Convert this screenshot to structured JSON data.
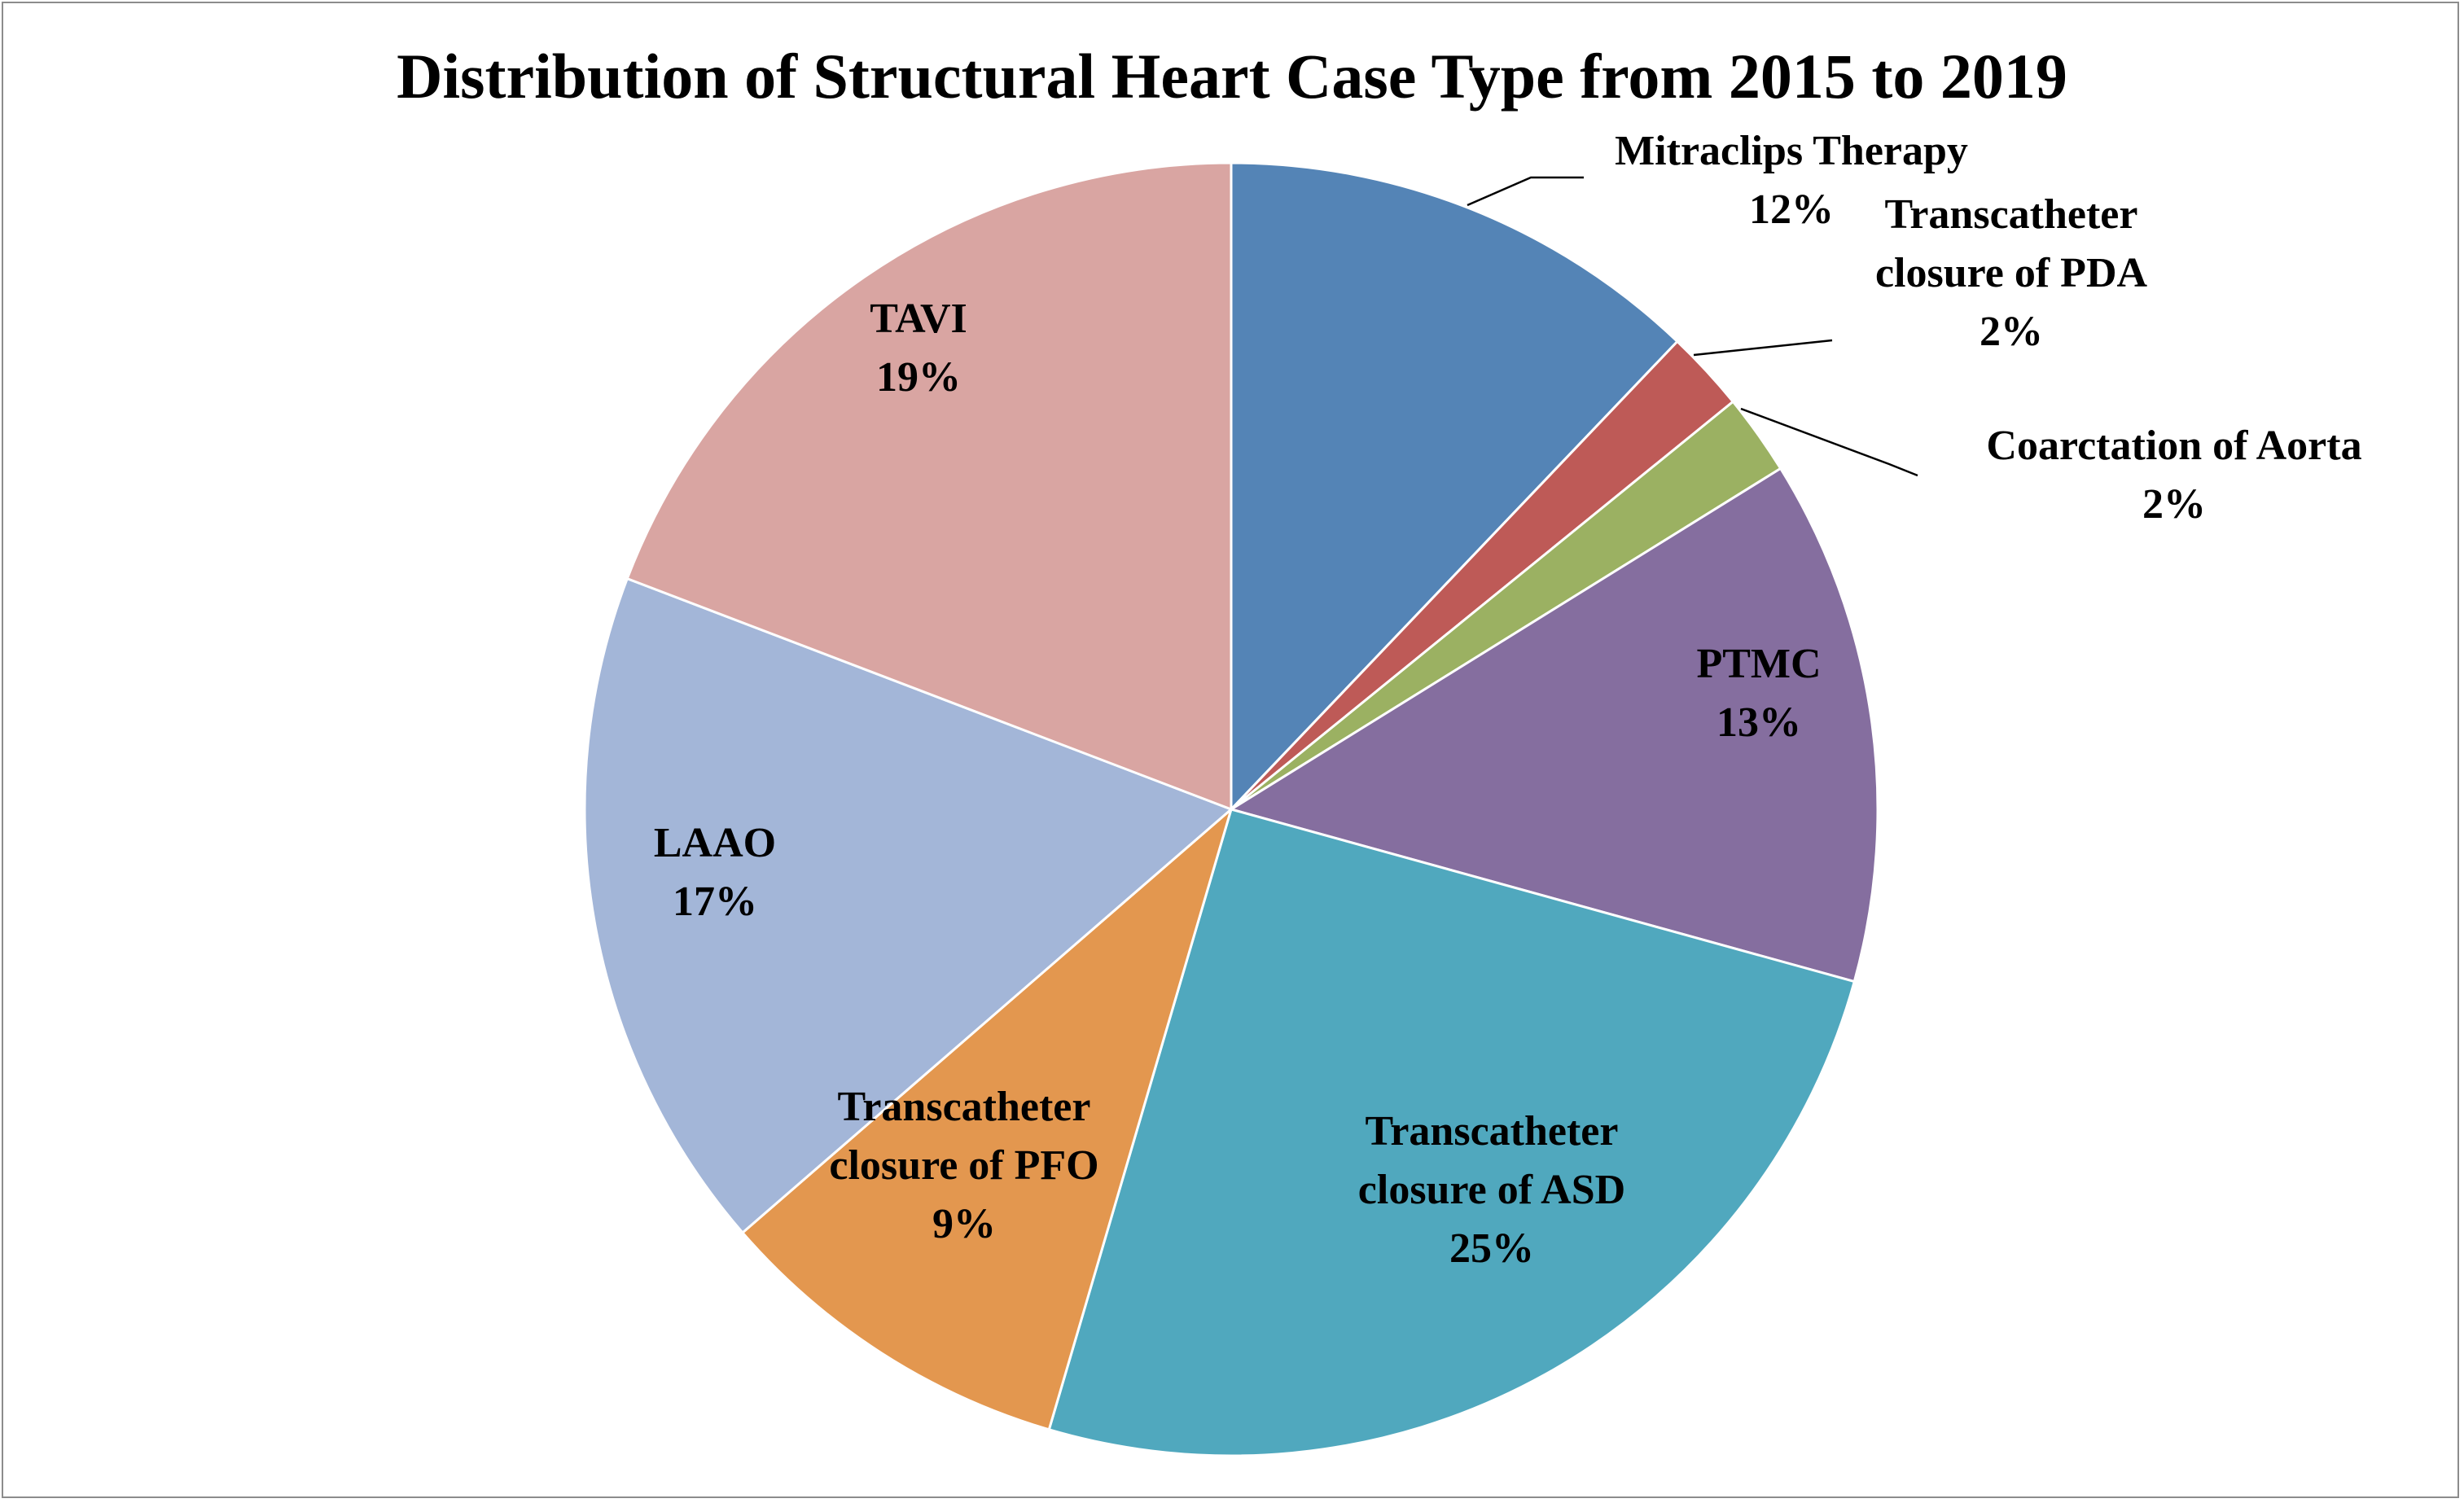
{
  "chart_data": {
    "type": "pie",
    "title": "Distribution of Structural Heart Case Type from 2015 to 2019",
    "start_angle_deg": 0,
    "direction": "clockwise",
    "slices": [
      {
        "name": "Mitraclips Therapy",
        "name_lines": [
          "Mitraclips Therapy"
        ],
        "value": 12,
        "label": "12%",
        "color": "#5484b6",
        "label_style": "outside-leader"
      },
      {
        "name": "Transcatheter closure of PDA",
        "name_lines": [
          "Transcatheter",
          "closure of PDA"
        ],
        "value": 2,
        "label": "2%",
        "color": "#be5a57",
        "label_style": "outside-leader"
      },
      {
        "name": "Coarctation of Aorta",
        "name_lines": [
          "Coarctation of Aorta"
        ],
        "value": 2,
        "label": "2%",
        "color": "#9bb162",
        "label_style": "outside-leader"
      },
      {
        "name": "PTMC",
        "name_lines": [
          "PTMC"
        ],
        "value": 13,
        "label": "13%",
        "color": "#856e9f",
        "label_style": "inside"
      },
      {
        "name": "Transcatheter closure of ASD",
        "name_lines": [
          "Transcatheter",
          "closure of ASD"
        ],
        "value": 25,
        "label": "25%",
        "color": "#50a8be",
        "label_style": "inside"
      },
      {
        "name": "Transcatheter closure of PFO",
        "name_lines": [
          "Transcatheter",
          "closure of PFO"
        ],
        "value": 9,
        "label": "9%",
        "color": "#e3974f",
        "label_style": "inside"
      },
      {
        "name": "LAAO",
        "name_lines": [
          "LAAO"
        ],
        "value": 17,
        "label": "17%",
        "color": "#a3b6d8",
        "label_style": "inside"
      },
      {
        "name": "TAVI",
        "name_lines": [
          "TAVI"
        ],
        "value": 19,
        "label": "19%",
        "color": "#d9a5a2",
        "label_style": "inside"
      }
    ]
  }
}
